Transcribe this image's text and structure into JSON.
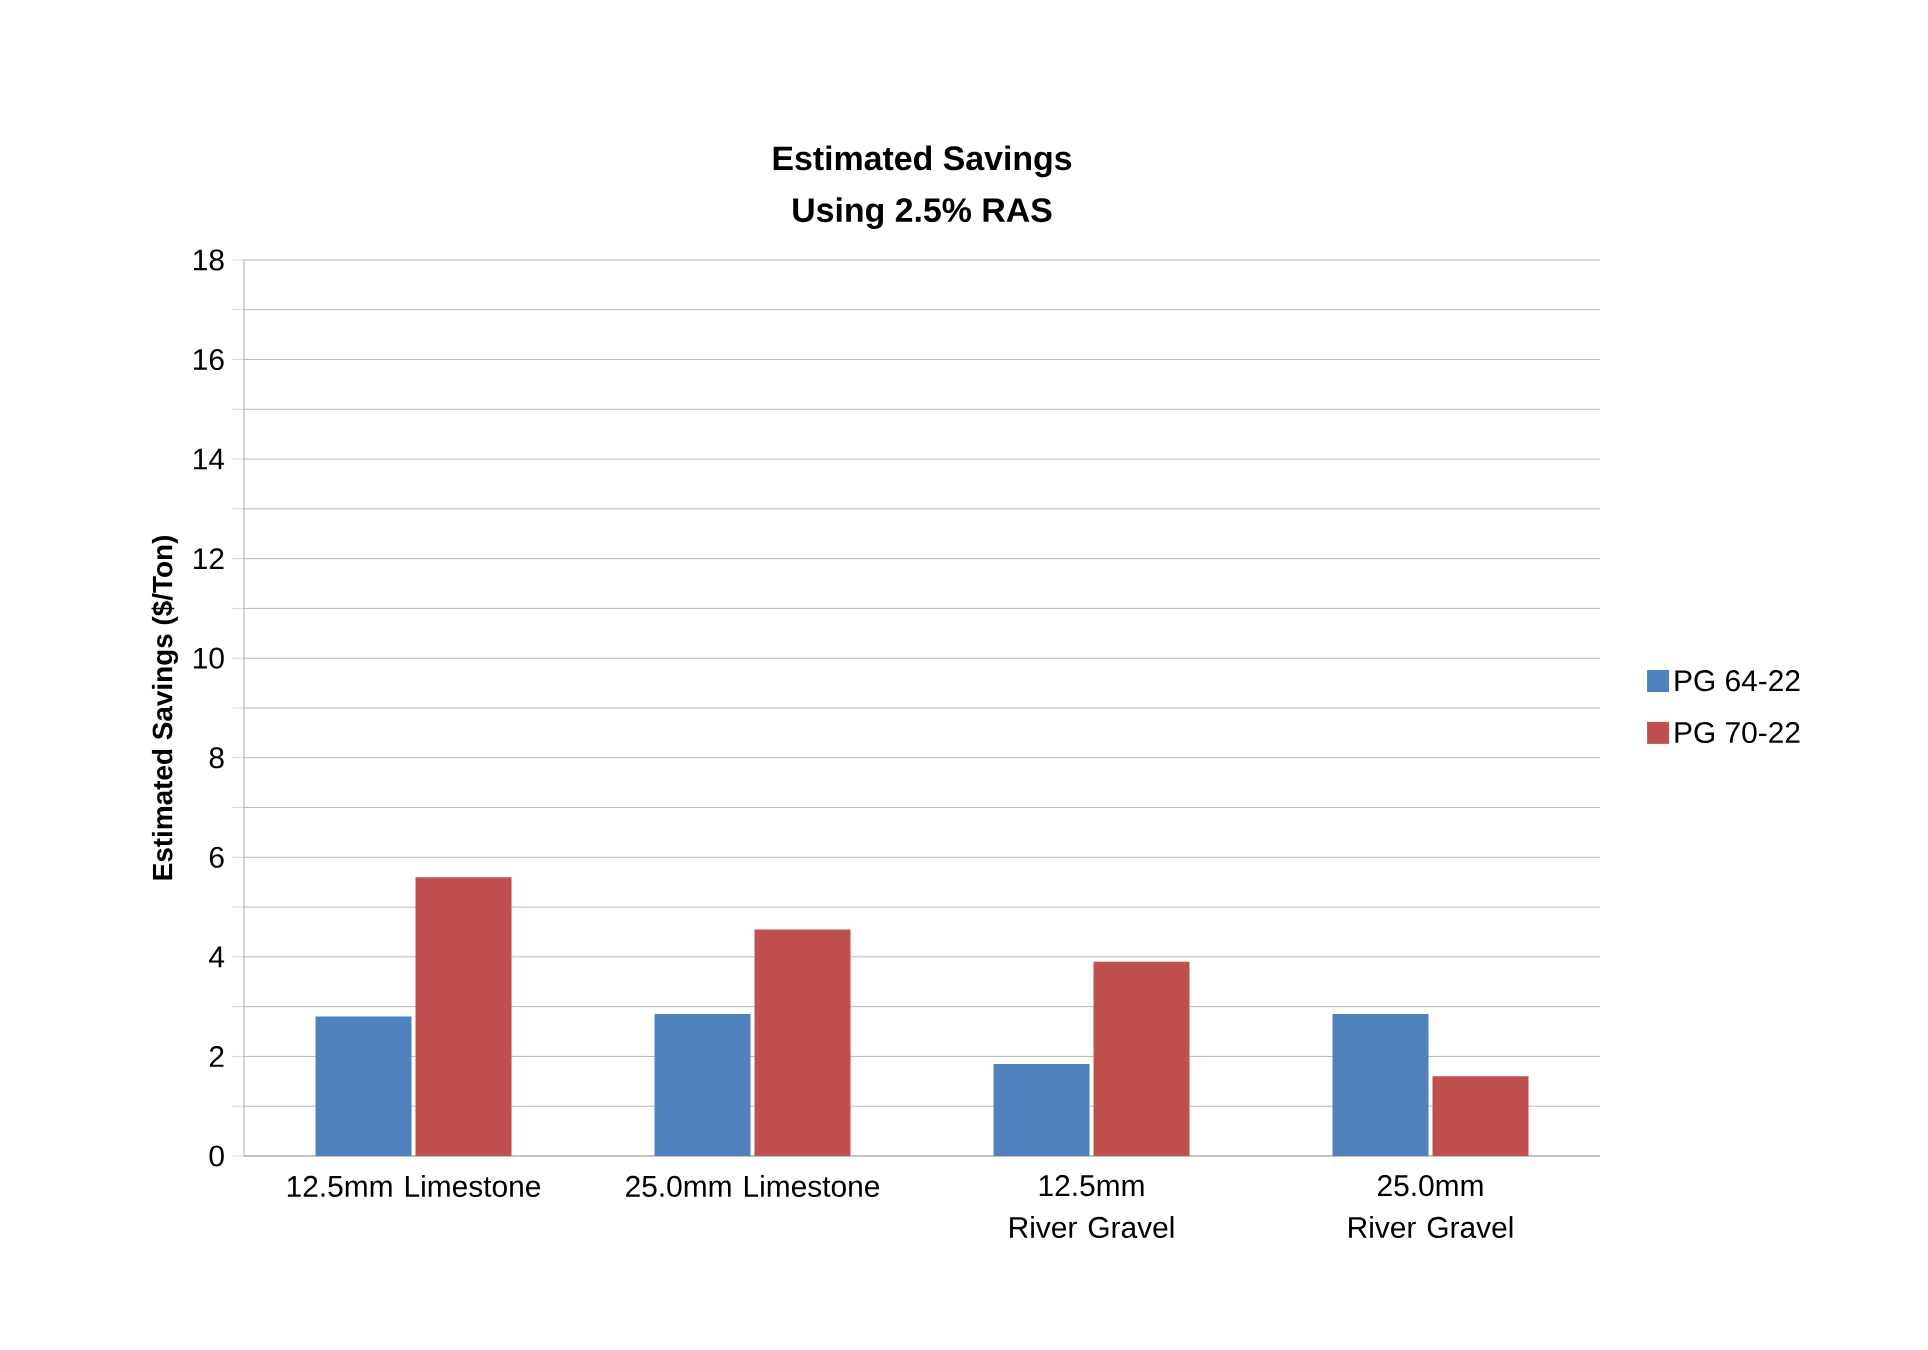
{
  "chart_data": {
    "type": "bar",
    "title": "Estimated Savings\nUsing 2.5% RAS",
    "ylabel": "Estimated Savings ($/Ton)",
    "categories": [
      "12.5mm Limestone",
      "25.0mm Limestone",
      "12.5mm River Gravel",
      "25.0mm River Gravel"
    ],
    "series": [
      {
        "name": "PG 64-22",
        "color": "#4f81bd",
        "values": [
          2.8,
          2.85,
          1.85,
          2.85
        ]
      },
      {
        "name": "PG 70-22",
        "color": "#c0504d",
        "values": [
          5.6,
          4.55,
          3.9,
          1.6
        ]
      }
    ],
    "ylim": [
      0,
      18
    ],
    "yticks": [
      0,
      {
        "value": 1,
        "label": null
      },
      2,
      {
        "value": 3,
        "label": null
      },
      4,
      {
        "value": 5,
        "label": null
      },
      6,
      {
        "value": 7,
        "label": null
      },
      8,
      {
        "value": 9,
        "label": null
      },
      10,
      {
        "value": 11,
        "label": null
      },
      12,
      {
        "value": 13,
        "label": null
      },
      14,
      {
        "value": 15,
        "label": null
      },
      16,
      {
        "value": 17,
        "label": null
      },
      18
    ],
    "grid": "y",
    "legend": "right"
  }
}
